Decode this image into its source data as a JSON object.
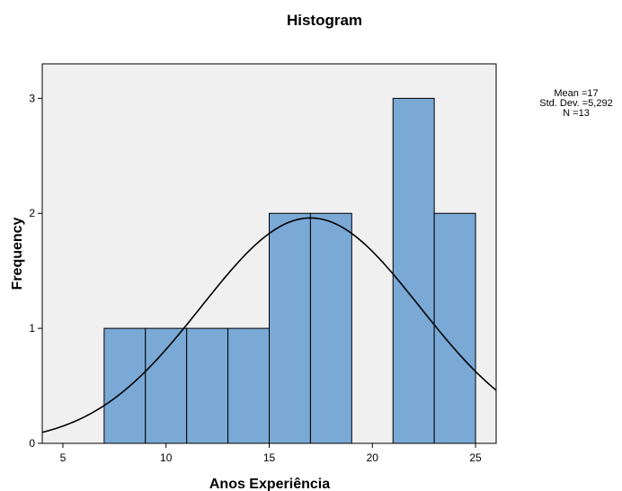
{
  "chart_data": {
    "type": "bar",
    "title": "Histogram",
    "xlabel": "Anos Experiência",
    "ylabel": "Frequency",
    "xlim": [
      4,
      26
    ],
    "ylim": [
      0,
      3.3
    ],
    "x_ticks": [
      5,
      10,
      15,
      20,
      25
    ],
    "y_ticks": [
      0,
      1,
      2,
      3
    ],
    "bin_width": 2,
    "bins": [
      {
        "start": 7,
        "end": 9,
        "count": 1
      },
      {
        "start": 9,
        "end": 11,
        "count": 1
      },
      {
        "start": 11,
        "end": 13,
        "count": 1
      },
      {
        "start": 13,
        "end": 15,
        "count": 1
      },
      {
        "start": 15,
        "end": 17,
        "count": 2
      },
      {
        "start": 17,
        "end": 19,
        "count": 2
      },
      {
        "start": 19,
        "end": 21,
        "count": 0
      },
      {
        "start": 21,
        "end": 23,
        "count": 3
      },
      {
        "start": 23,
        "end": 25,
        "count": 2
      }
    ],
    "normal_curve": {
      "mean": 17,
      "std_dev": 5.292,
      "n": 13
    },
    "stats_lines": [
      "Mean =17",
      "Std. Dev. =5,292",
      "N =13"
    ],
    "grid": false,
    "colors": {
      "bar_fill": "#7aa9d6",
      "plot_bg": "#f0f0f0",
      "curve": "#000000"
    }
  }
}
